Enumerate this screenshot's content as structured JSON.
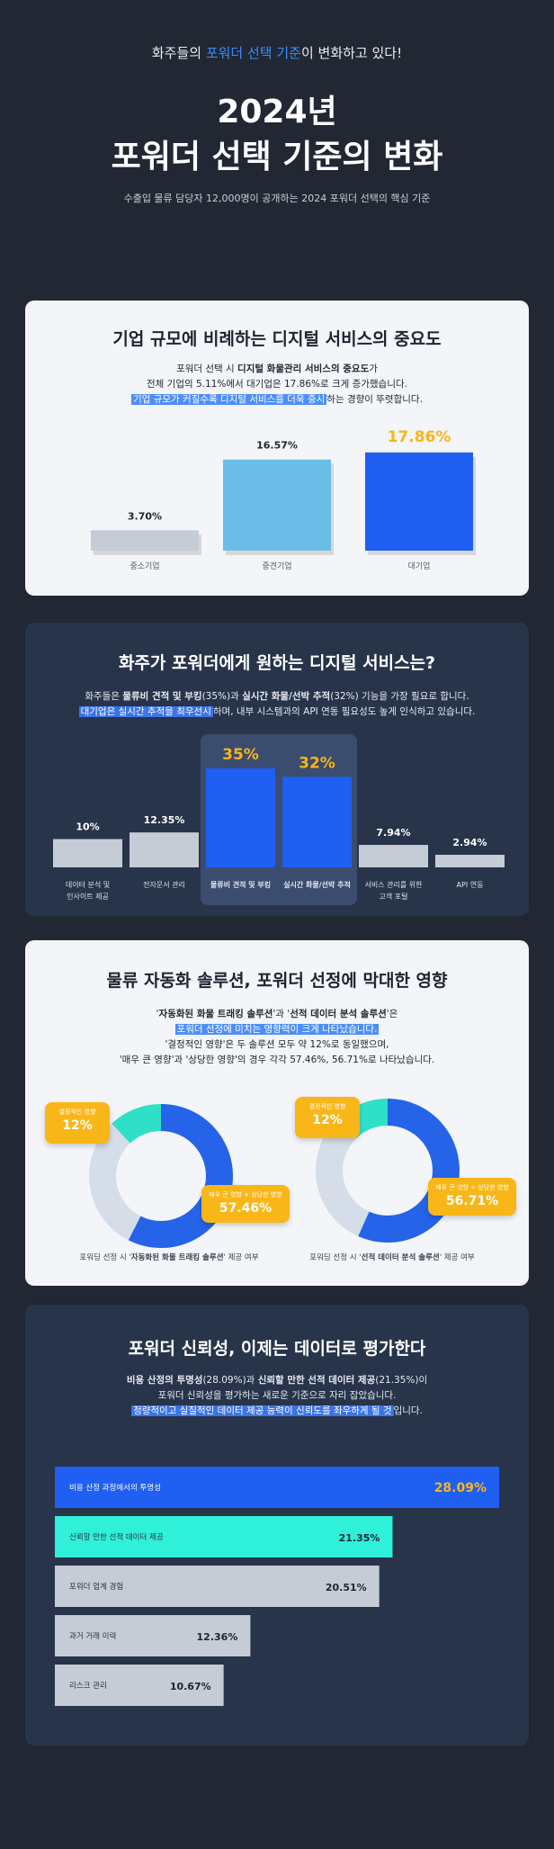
{
  "header": {
    "subtitle_pre": "화주들의 ",
    "subtitle_hl": "포워더 선택 기준",
    "subtitle_post": "이 변화하고 있다!",
    "title_line1": "2024년",
    "title_line2": "포워더 선택 기준의 변화",
    "description": "수출입 물류 담당자 12,000명이 공개하는 2024 포워더 선택의 핵심 기준"
  },
  "section1": {
    "title": "기업 규모에 비례하는 디지털 서비스의 중요도",
    "desc_line1_pre": "포워더 선택 시 ",
    "desc_line1_bold": "디지털 화물관리 서비스의 중요도",
    "desc_line1_post": "가",
    "desc_line2": "전체 기업의 5.11%에서 대기업은 17.86%로 크게 증가했습니다.",
    "desc_line3_mark": "기업 규모가 커질수록 디지털 서비스를 더욱 중시",
    "desc_line3_post": "하는 경향이 뚜렷합니다.",
    "colors": {
      "small": "#c5ccd6",
      "mid": "#6bbce6",
      "large": "#1f5ff2",
      "highlight_value": "#f9b618"
    },
    "chart_data": {
      "type": "bar",
      "categories": [
        "중소기업",
        "중견기업",
        "대기업"
      ],
      "values": [
        3.7,
        16.57,
        17.86
      ],
      "value_labels": [
        "3.70%",
        "16.57%",
        "17.86%"
      ],
      "ylim": [
        0,
        18
      ]
    }
  },
  "section2": {
    "title": "화주가 포워더에게 원하는 디지털 서비스는?",
    "desc_line1_pre": "화주들은 ",
    "desc_line1_b1": "물류비 견적 및 부킹",
    "desc_line1_mid": "(35%)과 ",
    "desc_line1_b2": "실시간 화물/선박 추적",
    "desc_line1_post": "(32%) 기능을 가장 필요로 합니다.",
    "desc_line2_mark": "대기업은 실시간 추적을 최우선시",
    "desc_line2_post": "하며, 내부 시스템과의 API 연동 필요성도 높게 인식하고 있습니다.",
    "colors": {
      "normal": "#c5ccd6",
      "highlight": "#1f5ff2",
      "highlight_bg": "#3b4d6e",
      "highlight_value": "#f9b618"
    },
    "chart_data": {
      "type": "bar",
      "categories": [
        [
          "데이터 분석 및",
          "인사이트 제공"
        ],
        [
          "전자문서 관리"
        ],
        [
          "물류비 견적 및 부킹"
        ],
        [
          "실시간 화물/선박 추적"
        ],
        [
          "서비스 관리를 위한",
          "고객 포털"
        ],
        [
          "API 연동"
        ]
      ],
      "values": [
        10,
        12.35,
        35,
        32,
        7.94,
        2.94
      ],
      "value_labels": [
        "10%",
        "12.35%",
        "35%",
        "32%",
        "7.94%",
        "2.94%"
      ],
      "highlighted": [
        false,
        false,
        true,
        true,
        false,
        false
      ]
    }
  },
  "section3": {
    "title": "물류 자동화 솔루션, 포워더 선정에 막대한 영향",
    "desc_line1_pre": "'",
    "desc_line1_b1": "자동화된 화물 트래킹 솔루션",
    "desc_line1_mid": "'과 '",
    "desc_line1_b2": "선적 데이터 분석 솔루션",
    "desc_line1_post": "'은",
    "desc_line2_mark": "포워더 선정에 미치는 영향력이 크게 나타났습니다.",
    "desc_line3": "'결정적인 영향'은 두 솔루션 모두 약 12%로 동일했으며,",
    "desc_line4": "'매우 큰 영향'과 '상당한 영향'의 경우 각각 57.46%, 56.71%로 나타났습니다.",
    "colors": {
      "decisive": "#2fe0c8",
      "large": "#2563e8",
      "rest": "#d4dde8",
      "chip": "#f9b618"
    },
    "chart_data": [
      {
        "type": "pie",
        "segments": [
          {
            "label": "결정적인 영향",
            "value": 12,
            "value_label": "12%"
          },
          {
            "label": "매우 큰 영향 + 상당한 영향",
            "value": 57.46,
            "value_label": "57.46%"
          }
        ],
        "caption_pre": "포워딩 선정 시 '",
        "caption_bold": "자동화된 화물 트래킹 솔루션",
        "caption_post": "' 제공 여부"
      },
      {
        "type": "pie",
        "segments": [
          {
            "label": "결정적인 영향",
            "value": 12,
            "value_label": "12%"
          },
          {
            "label": "매우 큰 영향 + 상당한 영향",
            "value": 56.71,
            "value_label": "56.71%"
          }
        ],
        "caption_pre": "포워딩 선정 시 '",
        "caption_bold": "선적 데이터 분석 솔루션",
        "caption_post": "' 제공 여부"
      }
    ]
  },
  "section4": {
    "title": "포워더 신뢰성, 이제는 데이터로 평가한다",
    "desc_line1_b1": "비용 산정의 투명성",
    "desc_line1_mid": "(28.09%)과 ",
    "desc_line1_b2": "신뢰할 만한 선적 데이터 제공",
    "desc_line1_post": "(21.35%)이",
    "desc_line2": "포워더 신뢰성을 평가하는 새로운 기준으로 자리 잡았습니다.",
    "desc_line3_mark": "정량적이고 실질적인 데이터 제공 능력이 신뢰도를 좌우하게 될 것",
    "desc_line3_post": "입니다.",
    "colors": {
      "first": "#1f5ff2",
      "second": "#2ff0d8",
      "rest": "#c5ccd6",
      "first_value": "#f9b618"
    },
    "chart_data": {
      "type": "bar",
      "orientation": "horizontal",
      "categories": [
        "비용 산정 과정에서의 투명성",
        "신뢰할 만한 선적 데이터 제공",
        "포워더 업계 경험",
        "과거 거래 이력",
        "리스크 관리"
      ],
      "values": [
        28.09,
        21.35,
        20.51,
        12.36,
        10.67
      ],
      "value_labels": [
        "28.09%",
        "21.35%",
        "20.51%",
        "12.36%",
        "10.67%"
      ],
      "xlim": [
        0,
        28.09
      ]
    }
  }
}
